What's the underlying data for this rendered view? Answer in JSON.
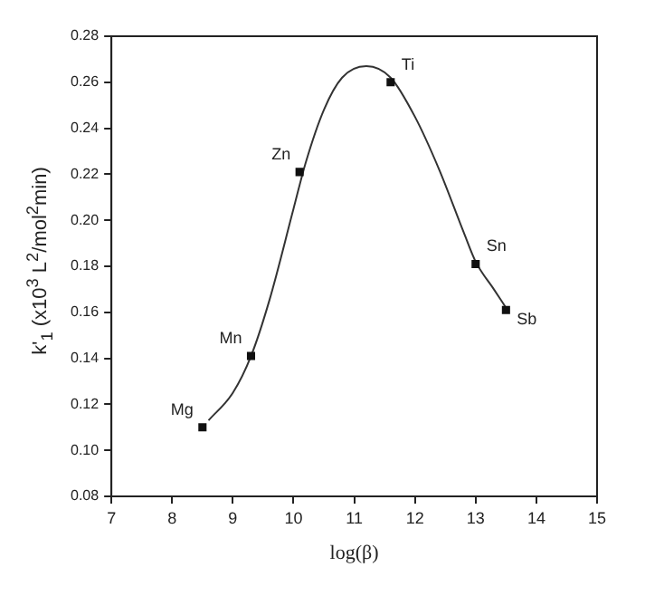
{
  "chart_data": {
    "type": "scatter",
    "xlabel": "log(β)",
    "ylabel": "k'$_{1}$ (x10$^{3}$ L$^{2}$/mol$^{2}$min)",
    "xlim": [
      7,
      15
    ],
    "xticks": [
      7,
      8,
      9,
      10,
      11,
      12,
      13,
      14,
      15
    ],
    "ylim": [
      0.08,
      0.28
    ],
    "yticks": [
      0.08,
      {
        "value": 0.1,
        "label": "0.10"
      },
      0.12,
      0.14,
      0.16,
      0.18,
      {
        "value": 0.2,
        "label": "0.20"
      },
      0.22,
      0.24,
      0.26,
      0.28
    ],
    "grid": false,
    "legend": false,
    "marker": "square",
    "series": [
      {
        "color": "#111111",
        "x": [
          8.5,
          9.3,
          10.1,
          11.6,
          13.0,
          13.5
        ],
        "values": [
          0.11,
          0.141,
          0.221,
          0.26,
          0.181,
          0.161
        ]
      },
      {
        "type": "line",
        "color": "#333333",
        "marker": "none",
        "line_style": "solid",
        "x": [
          8.6,
          9.0,
          9.3,
          9.6,
          10.0,
          10.2,
          10.5,
          10.8,
          11.2,
          11.6,
          12.0,
          12.4,
          12.8,
          13.0,
          13.3,
          13.5
        ],
        "values": [
          0.113,
          0.125,
          0.141,
          0.165,
          0.205,
          0.225,
          0.248,
          0.262,
          0.267,
          0.262,
          0.245,
          0.222,
          0.195,
          0.182,
          0.17,
          0.162
        ]
      }
    ],
    "annotations": [
      {
        "text": "Mg",
        "x": 8.5,
        "y": 0.11
      },
      {
        "text": "Mn",
        "x": 9.3,
        "y": 0.141
      },
      {
        "text": "Zn",
        "x": 10.1,
        "y": 0.221
      },
      {
        "text": "Ti",
        "x": 11.6,
        "y": 0.26
      },
      {
        "text": "Sn",
        "x": 13.0,
        "y": 0.181
      },
      {
        "text": "Sb",
        "x": 13.5,
        "y": 0.161
      }
    ]
  }
}
